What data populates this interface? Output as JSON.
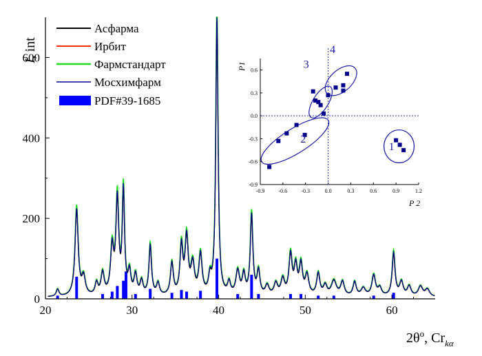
{
  "chart_data": [
    {
      "type": "line",
      "ylabel_parts": [
        "I",
        ", int"
      ],
      "xlabel_parts": [
        "2θ",
        "o",
        ", Cr",
        "kα"
      ],
      "xlim": [
        20,
        65
      ],
      "ylim": [
        0,
        700
      ],
      "xticks": [
        20,
        30,
        40,
        50,
        60
      ],
      "yticks": [
        0,
        200,
        400,
        600
      ],
      "grid": false,
      "legend_position": "top-left",
      "legend": [
        {
          "label": "Асфарма",
          "color": "#000000",
          "kind": "line"
        },
        {
          "label": "Ирбит",
          "color": "#ff2a00",
          "kind": "line"
        },
        {
          "label": "Фармстандарт",
          "color": "#22dd22",
          "kind": "line"
        },
        {
          "label": "Мосхимфарм",
          "color": "#00008b",
          "kind": "line"
        },
        {
          "label": "PDF#39-1685",
          "color": "#0000ff",
          "kind": "bar"
        }
      ],
      "background": 4,
      "peaks": [
        {
          "x": 21.4,
          "y": 18,
          "w": 0.18
        },
        {
          "x": 23.6,
          "y": 215,
          "w": 0.22
        },
        {
          "x": 24.4,
          "y": 45,
          "w": 0.25
        },
        {
          "x": 25.9,
          "y": 30,
          "w": 0.2
        },
        {
          "x": 26.6,
          "y": 55,
          "w": 0.22
        },
        {
          "x": 27.7,
          "y": 115,
          "w": 0.22
        },
        {
          "x": 28.3,
          "y": 235,
          "w": 0.2
        },
        {
          "x": 29.0,
          "y": 255,
          "w": 0.16
        },
        {
          "x": 29.7,
          "y": 55,
          "w": 0.2
        },
        {
          "x": 30.4,
          "y": 50,
          "w": 0.2
        },
        {
          "x": 31.1,
          "y": 35,
          "w": 0.2
        },
        {
          "x": 32.1,
          "y": 125,
          "w": 0.18
        },
        {
          "x": 33.0,
          "y": 30,
          "w": 0.2
        },
        {
          "x": 34.6,
          "y": 80,
          "w": 0.2
        },
        {
          "x": 35.7,
          "y": 120,
          "w": 0.2
        },
        {
          "x": 36.3,
          "y": 140,
          "w": 0.22
        },
        {
          "x": 37.0,
          "y": 75,
          "w": 0.25
        },
        {
          "x": 37.9,
          "y": 100,
          "w": 0.22
        },
        {
          "x": 39.0,
          "y": 40,
          "w": 0.2
        },
        {
          "x": 39.8,
          "y": 695,
          "w": 0.16
        },
        {
          "x": 41.2,
          "y": 30,
          "w": 0.2
        },
        {
          "x": 42.2,
          "y": 60,
          "w": 0.25
        },
        {
          "x": 42.9,
          "y": 50,
          "w": 0.2
        },
        {
          "x": 43.8,
          "y": 200,
          "w": 0.18
        },
        {
          "x": 44.6,
          "y": 60,
          "w": 0.2
        },
        {
          "x": 45.6,
          "y": 25,
          "w": 0.25
        },
        {
          "x": 46.6,
          "y": 30,
          "w": 0.25
        },
        {
          "x": 47.4,
          "y": 40,
          "w": 0.25
        },
        {
          "x": 48.3,
          "y": 100,
          "w": 0.22
        },
        {
          "x": 48.9,
          "y": 70,
          "w": 0.22
        },
        {
          "x": 49.5,
          "y": 75,
          "w": 0.22
        },
        {
          "x": 50.2,
          "y": 50,
          "w": 0.25
        },
        {
          "x": 51.5,
          "y": 55,
          "w": 0.22
        },
        {
          "x": 52.3,
          "y": 25,
          "w": 0.25
        },
        {
          "x": 53.3,
          "y": 38,
          "w": 0.35
        },
        {
          "x": 54.3,
          "y": 35,
          "w": 0.25
        },
        {
          "x": 55.7,
          "y": 35,
          "w": 0.22
        },
        {
          "x": 56.7,
          "y": 20,
          "w": 0.3
        },
        {
          "x": 57.9,
          "y": 52,
          "w": 0.25
        },
        {
          "x": 58.6,
          "y": 20,
          "w": 0.25
        },
        {
          "x": 60.2,
          "y": 108,
          "w": 0.2
        },
        {
          "x": 61.1,
          "y": 35,
          "w": 0.25
        },
        {
          "x": 62.0,
          "y": 25,
          "w": 0.25
        },
        {
          "x": 63.3,
          "y": 25,
          "w": 0.3
        },
        {
          "x": 64.1,
          "y": 18,
          "w": 0.3
        }
      ],
      "series": [
        {
          "name": "Асфарма",
          "color": "#000000",
          "scale": 0.96,
          "shift": 0.03
        },
        {
          "name": "Ирбит",
          "color": "#ff2a00",
          "scale": 0.98,
          "shift": -0.02
        },
        {
          "name": "Фармстандарт",
          "color": "#22dd22",
          "scale": 1.04,
          "shift": 0.05
        },
        {
          "name": "Мосхимфарм",
          "color": "#00008b",
          "scale": 1.0,
          "shift": 0.0
        }
      ],
      "bars_series": {
        "name": "PDF#39-1685",
        "color": "#0000ff",
        "bars": [
          {
            "x": 21.4,
            "y": 8
          },
          {
            "x": 23.6,
            "y": 55
          },
          {
            "x": 26.6,
            "y": 12
          },
          {
            "x": 27.7,
            "y": 18
          },
          {
            "x": 28.3,
            "y": 32
          },
          {
            "x": 29.0,
            "y": 45
          },
          {
            "x": 29.3,
            "y": 68
          },
          {
            "x": 30.4,
            "y": 12
          },
          {
            "x": 32.1,
            "y": 25
          },
          {
            "x": 34.6,
            "y": 15
          },
          {
            "x": 35.7,
            "y": 22
          },
          {
            "x": 36.3,
            "y": 18
          },
          {
            "x": 37.9,
            "y": 20
          },
          {
            "x": 39.8,
            "y": 100
          },
          {
            "x": 42.2,
            "y": 12
          },
          {
            "x": 43.8,
            "y": 60
          },
          {
            "x": 44.6,
            "y": 12
          },
          {
            "x": 48.3,
            "y": 12
          },
          {
            "x": 49.5,
            "y": 12
          },
          {
            "x": 51.5,
            "y": 8
          },
          {
            "x": 53.3,
            "y": 8
          },
          {
            "x": 57.9,
            "y": 8
          },
          {
            "x": 60.2,
            "y": 15
          }
        ]
      }
    },
    {
      "type": "scatter",
      "xlabel": "P 2",
      "ylabel": "P1",
      "xlim": [
        -0.9,
        1.2
      ],
      "ylim": [
        -0.9,
        0.75
      ],
      "xticks": [
        -0.9,
        -0.6,
        -0.3,
        0.0,
        0.3,
        0.6,
        0.9,
        1.2
      ],
      "xtick_labels": [
        "-0.9",
        "-0.6",
        "-0.3",
        "0.0",
        "0.3",
        "0.6",
        "0.9",
        "1.2"
      ],
      "yticks": [
        -0.9,
        -0.6,
        -0.3,
        0.0,
        0.3,
        0.6
      ],
      "ytick_labels": [
        "-0.9",
        "-0.6",
        "-0.3",
        "0.0",
        "0.3",
        "0.6"
      ],
      "zero_lines": true,
      "marker_color": "#00008b",
      "points": [
        {
          "x": -0.78,
          "y": -0.67
        },
        {
          "x": -0.66,
          "y": -0.33
        },
        {
          "x": -0.55,
          "y": -0.23
        },
        {
          "x": -0.42,
          "y": -0.12
        },
        {
          "x": -0.31,
          "y": -0.25
        },
        {
          "x": -0.2,
          "y": 0.32
        },
        {
          "x": -0.17,
          "y": 0.2
        },
        {
          "x": -0.13,
          "y": 0.18
        },
        {
          "x": -0.1,
          "y": 0.14
        },
        {
          "x": -0.06,
          "y": 0.03
        },
        {
          "x": 0.0,
          "y": 0.27
        },
        {
          "x": 0.1,
          "y": 0.37
        },
        {
          "x": 0.2,
          "y": 0.33
        },
        {
          "x": 0.2,
          "y": 0.4
        },
        {
          "x": 0.25,
          "y": 0.55
        },
        {
          "x": 0.9,
          "y": -0.32
        },
        {
          "x": 0.95,
          "y": -0.38
        },
        {
          "x": 1.0,
          "y": -0.45
        }
      ],
      "clusters": [
        {
          "label": "1",
          "cx": 0.94,
          "cy": -0.4,
          "rx": 0.2,
          "ry": 0.215,
          "angle": 0
        },
        {
          "label": "2",
          "cx": -0.44,
          "cy": -0.33,
          "rx": 0.52,
          "ry": 0.16,
          "angle": -32
        },
        {
          "label": "3",
          "cx": -0.1,
          "cy": 0.18,
          "rx": 0.24,
          "ry": 0.1,
          "angle": -58
        },
        {
          "label": "4",
          "cx": 0.17,
          "cy": 0.46,
          "rx": 0.25,
          "ry": 0.14,
          "angle": -42
        }
      ],
      "cluster_label_positions": [
        {
          "label": "1",
          "x": 0.84,
          "y": -0.45
        },
        {
          "label": "2",
          "x": -0.33,
          "y": -0.35
        },
        {
          "label": "3",
          "x": -0.29,
          "y": 0.63
        },
        {
          "label": "4",
          "x": 0.06,
          "y": 0.82
        }
      ]
    }
  ]
}
